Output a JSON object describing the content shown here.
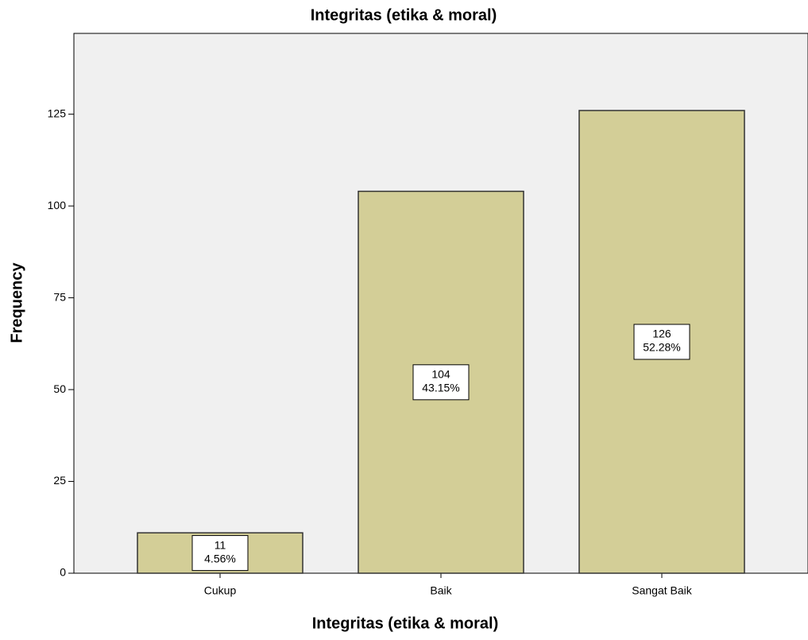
{
  "chart_data": {
    "type": "bar",
    "title": "Integritas (etika & moral)",
    "x_label": "Integritas (etika & moral)",
    "y_label": "Frequency",
    "categories": [
      "Cukup",
      "Baik",
      "Sangat Baik"
    ],
    "values": [
      11,
      104,
      126
    ],
    "percent_labels": [
      "4.56%",
      "43.15%",
      "52.28%"
    ],
    "color": "#d3ce97",
    "ylim": [
      0,
      147
    ],
    "yticks": [
      0,
      25,
      50,
      75,
      100,
      125
    ],
    "grid": false
  }
}
